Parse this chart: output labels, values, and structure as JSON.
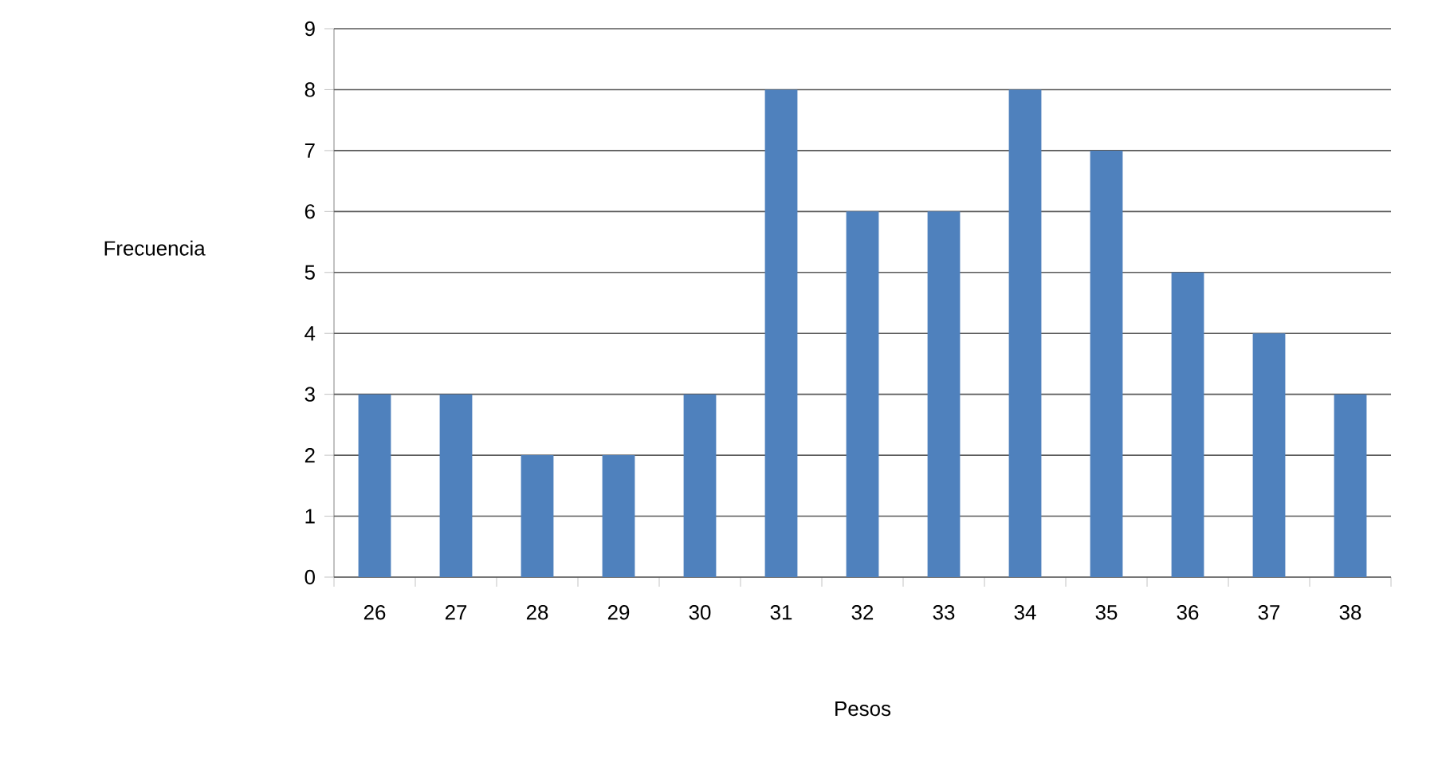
{
  "chart_data": {
    "type": "bar",
    "xlabel": "Pesos",
    "ylabel": "Frecuencia",
    "categories": [
      "26",
      "27",
      "28",
      "29",
      "30",
      "31",
      "32",
      "33",
      "34",
      "35",
      "36",
      "37",
      "38"
    ],
    "values": [
      3,
      3,
      2,
      2,
      3,
      8,
      6,
      6,
      8,
      7,
      5,
      4,
      3
    ],
    "color": "#4f81bd",
    "ylim": [
      0,
      9
    ],
    "yticks": [
      0,
      1,
      2,
      3,
      4,
      5,
      6,
      7,
      8,
      9
    ],
    "grid": "y"
  }
}
